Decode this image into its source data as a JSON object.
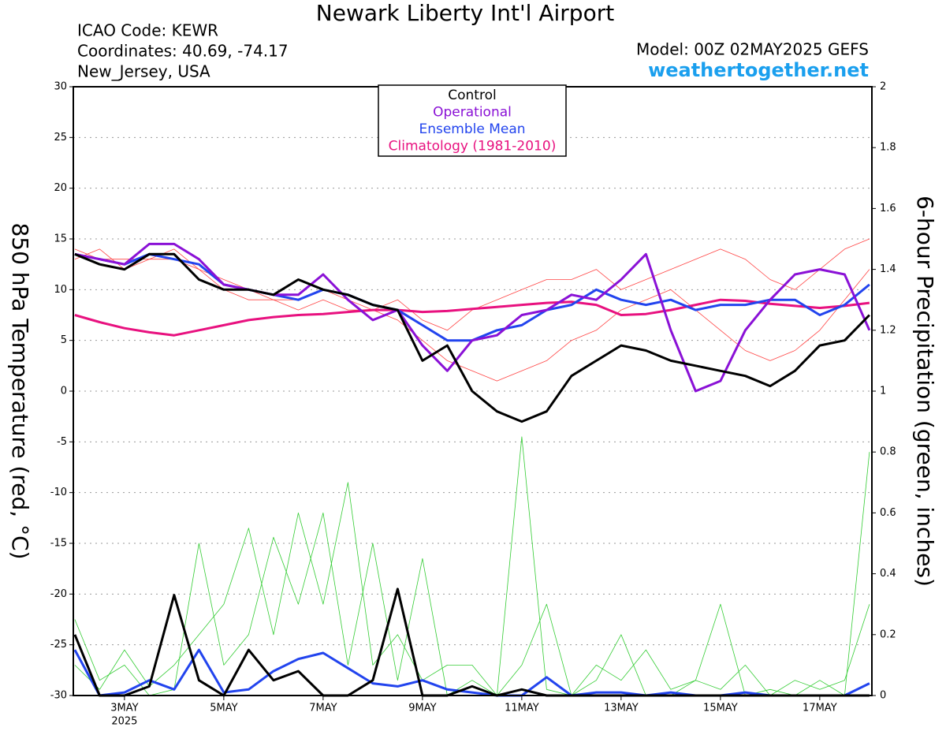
{
  "chart_data": {
    "type": "line",
    "title": "Newark Liberty Int'l Airport",
    "info": [
      "ICAO Code: KEWR",
      "Coordinates: 40.69, -74.17",
      "New_Jersey, USA"
    ],
    "model": "Model: 00Z 02MAY2025 GEFS",
    "source": "weathertogether.net",
    "y_label": "850 hPa Temperature (red, °C)",
    "y2_label": "6-hour Precipitation (green, inches)",
    "x_year_label": "2025",
    "grid": true,
    "legend": "top",
    "xlim": [
      1.97,
      18.05
    ],
    "xticks": [
      {
        "value": 3,
        "label": "3MAY"
      },
      {
        "value": 5,
        "label": "5MAY"
      },
      {
        "value": 7,
        "label": "7MAY"
      },
      {
        "value": 9,
        "label": "9MAY"
      },
      {
        "value": 11,
        "label": "11MAY"
      },
      {
        "value": 13,
        "label": "13MAY"
      },
      {
        "value": 15,
        "label": "15MAY"
      },
      {
        "value": 17,
        "label": "17MAY"
      }
    ],
    "ylim": [
      -30,
      30
    ],
    "yticks": [
      -30,
      -25,
      -20,
      -15,
      -10,
      -5,
      0,
      5,
      10,
      15,
      20,
      25,
      30
    ],
    "y2lim": [
      0,
      2
    ],
    "y2ticks": [
      0,
      0.2,
      0.4,
      0.6,
      0.8,
      1,
      1.2,
      1.4,
      1.6,
      1.8,
      2
    ],
    "x": [
      2,
      2.5,
      3,
      3.5,
      4,
      4.5,
      5,
      5.5,
      6,
      6.5,
      7,
      7.5,
      8,
      8.5,
      9,
      9.5,
      10,
      10.5,
      11,
      11.5,
      12,
      12.5,
      13,
      13.5,
      14,
      14.5,
      15,
      15.5,
      16,
      16.5,
      17,
      17.5,
      18
    ],
    "series": [
      {
        "color": "#33cc33",
        "axis": "y2",
        "width": 0.8,
        "values": [
          0.25,
          0.05,
          0.1,
          0,
          0.02,
          0.5,
          0.1,
          0.2,
          0.52,
          0.3,
          0.6,
          0.1,
          0.5,
          0.05,
          0.45,
          0,
          0.05,
          0,
          0.1,
          0.3,
          0,
          0.1,
          0.05,
          0.15,
          0.02,
          0.05,
          0.3,
          0,
          0.02,
          0,
          0.05,
          0,
          0.8
        ]
      },
      {
        "color": "#33cc33",
        "axis": "y2",
        "width": 0.8,
        "values": [
          0.1,
          0.02,
          0.15,
          0.03,
          0.1,
          0.2,
          0.3,
          0.55,
          0.2,
          0.6,
          0.3,
          0.7,
          0.1,
          0.2,
          0.05,
          0.1,
          0.1,
          0,
          0.85,
          0.02,
          0,
          0.05,
          0.2,
          0,
          0,
          0.05,
          0.02,
          0.1,
          0,
          0.05,
          0.02,
          0.05,
          0.3
        ]
      },
      {
        "color": "#ff4444",
        "width": 0.8,
        "values": [
          14,
          13,
          13,
          13,
          14,
          12,
          11,
          10,
          9,
          9,
          10,
          9,
          8,
          7,
          5,
          3,
          2,
          1,
          2,
          3,
          5,
          6,
          8,
          9,
          10,
          8,
          6,
          4,
          3,
          4,
          6,
          9,
          12
        ]
      },
      {
        "color": "#ff4444",
        "width": 0.8,
        "values": [
          13,
          14,
          12,
          13,
          13,
          12,
          10,
          9,
          9,
          8,
          9,
          8,
          8,
          9,
          7,
          6,
          8,
          9,
          10,
          11,
          11,
          12,
          10,
          11,
          12,
          13,
          14,
          13,
          11,
          10,
          12,
          14,
          15
        ]
      },
      {
        "name": "Climatology (1981-2010)",
        "color": "#e8117f",
        "width": 3,
        "values": [
          7.5,
          6.8,
          6.2,
          5.8,
          5.5,
          6,
          6.5,
          7,
          7.3,
          7.5,
          7.6,
          7.8,
          8,
          8,
          7.8,
          7.9,
          8.1,
          8.3,
          8.5,
          8.7,
          8.8,
          8.5,
          7.5,
          7.6,
          8,
          8.5,
          9,
          8.9,
          8.6,
          8.4,
          8.2,
          8.4,
          8.7
        ]
      },
      {
        "color": "#2244ee",
        "axis": "y2",
        "width": 3,
        "values": [
          0.15,
          0,
          0.01,
          0.05,
          0.02,
          0.15,
          0.01,
          0.02,
          0.08,
          0.12,
          0.14,
          0.09,
          0.04,
          0.03,
          0.05,
          0.02,
          0.01,
          0,
          0,
          0.06,
          0,
          0.01,
          0.01,
          0,
          0.01,
          0,
          0,
          0.01,
          0,
          0,
          0,
          0,
          0.04
        ]
      },
      {
        "color": "#000000",
        "axis": "y2",
        "width": 3,
        "values": [
          0.2,
          0,
          0,
          0.03,
          0.33,
          0.05,
          0,
          0.15,
          0.05,
          0.08,
          0,
          0,
          0.05,
          0.35,
          0,
          0,
          0.03,
          0,
          0.02,
          0,
          0,
          0,
          0,
          0,
          0,
          0,
          0,
          0,
          0,
          0,
          0,
          0,
          0
        ]
      },
      {
        "name": "Ensemble Mean",
        "color": "#2244ee",
        "width": 3,
        "values": [
          13.5,
          13,
          12.5,
          13.5,
          13,
          12.5,
          10.5,
          10,
          9.5,
          9,
          10,
          9.5,
          8.5,
          8,
          6.5,
          5,
          5,
          6,
          6.5,
          8,
          8.5,
          10,
          9,
          8.5,
          9,
          8,
          8.5,
          8.5,
          9,
          9,
          7.5,
          8.5,
          10.5
        ]
      },
      {
        "name": "Operational",
        "color": "#8a11d6",
        "width": 3,
        "values": [
          13.5,
          13,
          12.5,
          14.5,
          14.5,
          13,
          10.5,
          10,
          9.5,
          9.5,
          11.5,
          9,
          7,
          8,
          4.5,
          2,
          5,
          5.5,
          7.5,
          8,
          9.5,
          9,
          11,
          13.5,
          6,
          0,
          1,
          6,
          9,
          11.5,
          12,
          11.5,
          6
        ]
      },
      {
        "name": "Control",
        "color": "#000000",
        "width": 3,
        "values": [
          13.5,
          12.5,
          12,
          13.5,
          13.5,
          11,
          10,
          10,
          9.5,
          11,
          10,
          9.5,
          8.5,
          8,
          3,
          4.5,
          0,
          -2,
          -3,
          -2,
          1.5,
          3,
          4.5,
          4,
          3,
          2.5,
          2,
          1.5,
          0.5,
          2,
          4.5,
          5,
          7.5
        ]
      }
    ]
  }
}
